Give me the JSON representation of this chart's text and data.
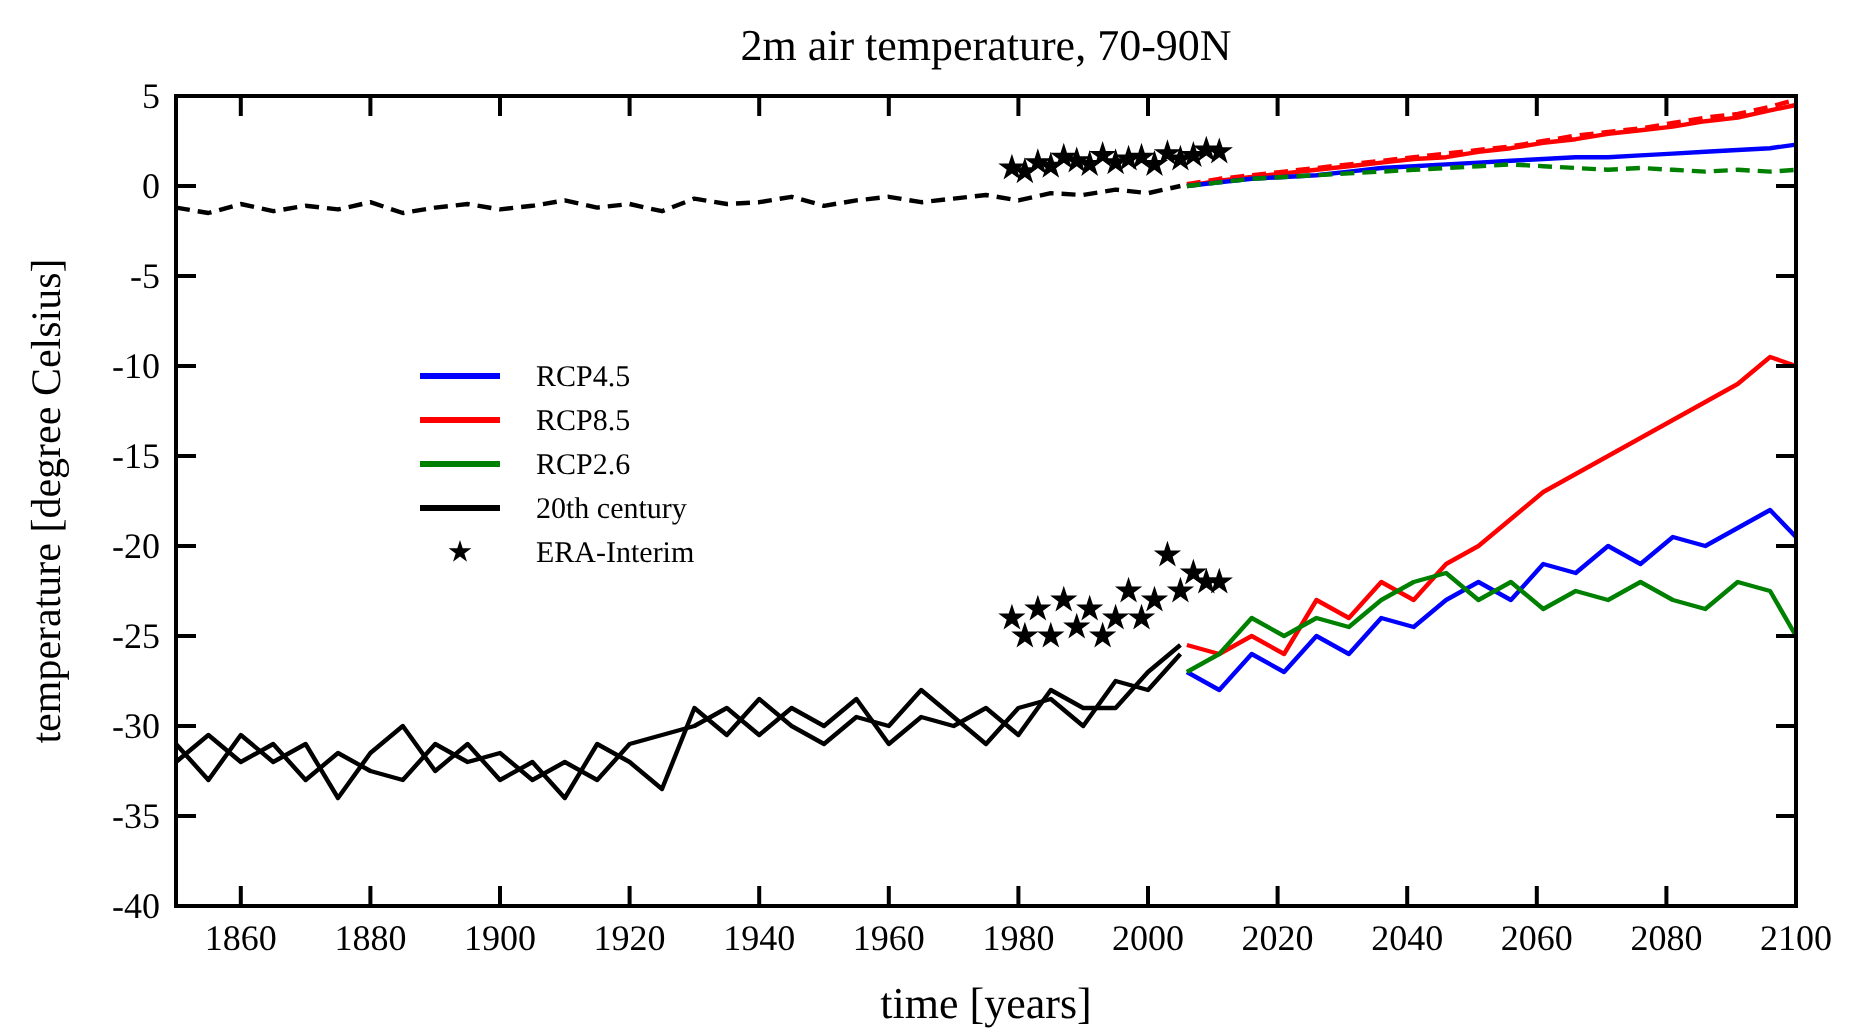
{
  "chart_data": {
    "type": "line",
    "title": "2m air temperature, 70-90N",
    "xlabel": "time [years]",
    "ylabel": "temperature [degree Celsius]",
    "xlim": [
      1850,
      2100
    ],
    "xticks": [
      1860,
      1880,
      1900,
      1920,
      1940,
      1960,
      1980,
      2000,
      2020,
      2040,
      2060,
      2080,
      2100
    ],
    "ylim": [
      -40,
      5
    ],
    "yticks": [
      -40,
      -35,
      -30,
      -25,
      -20,
      -15,
      -10,
      -5,
      0,
      5
    ],
    "grid": false,
    "legend": "left",
    "marker": "none",
    "line_style": "solid",
    "series": [
      {
        "name": "RCP4.5",
        "color": "#0000ff",
        "x": [
          2006,
          2011,
          2016,
          2021,
          2026,
          2031,
          2036,
          2041,
          2046,
          2051,
          2056,
          2061,
          2066,
          2071,
          2076,
          2081,
          2086,
          2091,
          2096,
          2100
        ],
        "values": [
          -27,
          -28,
          -26,
          -27,
          -25,
          -26,
          -24,
          -24.5,
          -23,
          -22,
          -23,
          -21,
          -21.5,
          -20,
          -21,
          -19.5,
          -20,
          -19,
          -18,
          -19.5
        ]
      },
      {
        "name": "RCP8.5",
        "color": "#ff0000",
        "x": [
          2006,
          2011,
          2016,
          2021,
          2026,
          2031,
          2036,
          2041,
          2046,
          2051,
          2056,
          2061,
          2066,
          2071,
          2076,
          2081,
          2086,
          2091,
          2096,
          2100
        ],
        "values": [
          -25.5,
          -26,
          -25,
          -26,
          -23,
          -24,
          -22,
          -23,
          -21,
          -20,
          -18.5,
          -17,
          -16,
          -15,
          -14,
          -13,
          -12,
          -11,
          -9.5,
          -10
        ]
      },
      {
        "name": "RCP2.6",
        "color": "#008000",
        "x": [
          2006,
          2011,
          2016,
          2021,
          2026,
          2031,
          2036,
          2041,
          2046,
          2051,
          2056,
          2061,
          2066,
          2071,
          2076,
          2081,
          2086,
          2091,
          2096,
          2100
        ],
        "values": [
          -27,
          -26,
          -24,
          -25,
          -24,
          -24.5,
          -23,
          -22,
          -21.5,
          -23,
          -22,
          -23.5,
          -22.5,
          -23,
          -22,
          -23,
          -23.5,
          -22,
          -22.5,
          -25
        ]
      },
      {
        "name": "20th century",
        "color": "#000000",
        "x": [
          1850,
          1855,
          1860,
          1865,
          1870,
          1875,
          1880,
          1885,
          1890,
          1895,
          1900,
          1905,
          1910,
          1915,
          1920,
          1925,
          1930,
          1935,
          1940,
          1945,
          1950,
          1955,
          1960,
          1965,
          1970,
          1975,
          1980,
          1985,
          1990,
          1995,
          2000,
          2005
        ],
        "values": [
          -31,
          -33,
          -30.5,
          -32,
          -31,
          -34,
          -31.5,
          -30,
          -32.5,
          -31,
          -33,
          -32,
          -34,
          -31,
          -32,
          -33.5,
          -29,
          -30.5,
          -28.5,
          -30,
          -31,
          -29.5,
          -30,
          -28,
          -29.5,
          -31,
          -29,
          -28.5,
          -30,
          -27.5,
          -28,
          -26
        ]
      },
      {
        "name": "ERA-Interim",
        "type": "scatter",
        "marker": "star",
        "color": "#000000",
        "x": [
          1979,
          1981,
          1983,
          1985,
          1987,
          1989,
          1991,
          1993,
          1995,
          1997,
          1999,
          2001,
          2003,
          2005,
          2007,
          2009,
          2011
        ],
        "values": [
          -24,
          -25,
          -23.5,
          -25,
          -23,
          -24.5,
          -23.5,
          -25,
          -24,
          -22.5,
          -24,
          -23,
          -20.5,
          -22.5,
          -21.5,
          -22,
          -22
        ]
      },
      {
        "color": "#000000",
        "x": [
          1850,
          1855,
          1860,
          1865,
          1870,
          1875,
          1880,
          1885,
          1890,
          1895,
          1900,
          1905,
          1910,
          1915,
          1920,
          1925,
          1930,
          1935,
          1940,
          1945,
          1950,
          1955,
          1960,
          1965,
          1970,
          1975,
          1980,
          1985,
          1990,
          1995,
          2000,
          2005
        ],
        "values": [
          -32,
          -30.5,
          -32,
          -31,
          -33,
          -31.5,
          -32.5,
          -33,
          -31,
          -32,
          -31.5,
          -33,
          -32,
          -33,
          -31,
          -30.5,
          -30,
          -29,
          -30.5,
          -29,
          -30,
          -28.5,
          -31,
          -29.5,
          -30,
          -29,
          -30.5,
          -28,
          -29,
          -29,
          -27,
          -25.5
        ]
      },
      {
        "color": "#000000",
        "line_style": "dashed",
        "x": [
          1850,
          1855,
          1860,
          1865,
          1870,
          1875,
          1880,
          1885,
          1890,
          1895,
          1900,
          1905,
          1910,
          1915,
          1920,
          1925,
          1930,
          1935,
          1940,
          1945,
          1950,
          1955,
          1960,
          1965,
          1970,
          1975,
          1980,
          1985,
          1990,
          1995,
          2000,
          2005
        ],
        "values": [
          -1.2,
          -1.5,
          -1,
          -1.4,
          -1.1,
          -1.3,
          -0.9,
          -1.5,
          -1.2,
          -1,
          -1.3,
          -1.1,
          -0.8,
          -1.2,
          -1,
          -1.4,
          -0.7,
          -1,
          -0.9,
          -0.6,
          -1.1,
          -0.8,
          -0.6,
          -0.9,
          -0.7,
          -0.5,
          -0.8,
          -0.4,
          -0.5,
          -0.2,
          -0.4,
          0
        ]
      },
      {
        "type": "scatter",
        "marker": "star",
        "color": "#000000",
        "x": [
          1979,
          1981,
          1983,
          1985,
          1987,
          1989,
          1991,
          1993,
          1995,
          1997,
          1999,
          2001,
          2003,
          2005,
          2007,
          2009,
          2011
        ],
        "values": [
          1,
          0.8,
          1.3,
          1.1,
          1.6,
          1.4,
          1.2,
          1.7,
          1.3,
          1.5,
          1.6,
          1.2,
          1.8,
          1.5,
          1.7,
          2,
          1.9
        ]
      },
      {
        "color": "#ff0000",
        "x": [
          2006,
          2011,
          2016,
          2021,
          2026,
          2031,
          2036,
          2041,
          2046,
          2051,
          2056,
          2061,
          2066,
          2071,
          2076,
          2081,
          2086,
          2091,
          2096,
          2100
        ],
        "values": [
          0,
          0.3,
          0.5,
          0.7,
          0.9,
          1.1,
          1.3,
          1.5,
          1.6,
          1.9,
          2.1,
          2.4,
          2.6,
          2.9,
          3.1,
          3.3,
          3.6,
          3.8,
          4.2,
          4.5
        ]
      },
      {
        "color": "#ff0000",
        "line_style": "dashed",
        "x": [
          2006,
          2011,
          2016,
          2021,
          2026,
          2031,
          2036,
          2041,
          2046,
          2051,
          2056,
          2061,
          2066,
          2071,
          2076,
          2081,
          2086,
          2091,
          2096,
          2100
        ],
        "values": [
          0.1,
          0.4,
          0.6,
          0.8,
          1,
          1.2,
          1.4,
          1.6,
          1.8,
          2,
          2.2,
          2.5,
          2.8,
          3,
          3.2,
          3.5,
          3.8,
          4,
          4.4,
          4.8
        ]
      },
      {
        "color": "#0000ff",
        "x": [
          2006,
          2011,
          2016,
          2021,
          2026,
          2031,
          2036,
          2041,
          2046,
          2051,
          2056,
          2061,
          2066,
          2071,
          2076,
          2081,
          2086,
          2091,
          2096,
          2100
        ],
        "values": [
          0,
          0.2,
          0.4,
          0.5,
          0.6,
          0.8,
          1,
          1.1,
          1.2,
          1.3,
          1.4,
          1.5,
          1.6,
          1.6,
          1.7,
          1.8,
          1.9,
          2,
          2.1,
          2.3
        ]
      },
      {
        "color": "#008000",
        "line_style": "dashed",
        "x": [
          2006,
          2011,
          2016,
          2021,
          2026,
          2031,
          2036,
          2041,
          2046,
          2051,
          2056,
          2061,
          2066,
          2071,
          2076,
          2081,
          2086,
          2091,
          2096,
          2100
        ],
        "values": [
          0,
          0.2,
          0.4,
          0.5,
          0.6,
          0.7,
          0.8,
          0.9,
          1,
          1.1,
          1.2,
          1.1,
          1,
          0.9,
          1,
          0.9,
          0.8,
          0.9,
          0.8,
          0.9
        ]
      }
    ]
  }
}
